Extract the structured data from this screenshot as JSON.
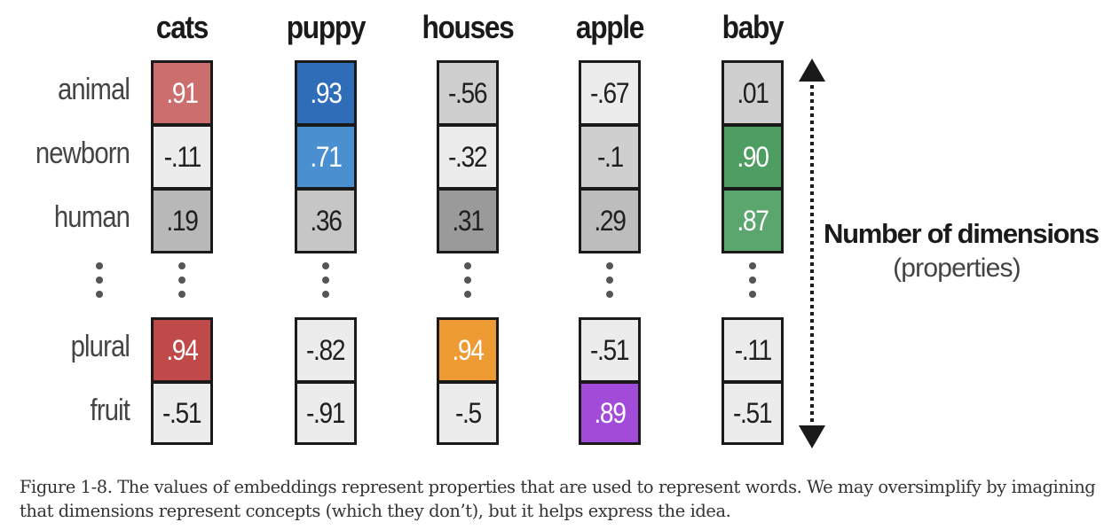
{
  "chart_data": {
    "type": "table",
    "columns": [
      "cats",
      "puppy",
      "houses",
      "apple",
      "baby"
    ],
    "rows": [
      "animal",
      "newborn",
      "human",
      "plural",
      "fruit"
    ],
    "values": [
      [
        ".91",
        ".93",
        "-.56",
        "-.67",
        ".01"
      ],
      [
        "-.11",
        ".71",
        "-.32",
        "-.1",
        ".90"
      ],
      [
        ".19",
        ".36",
        ".31",
        ".29",
        ".87"
      ],
      [
        ".94",
        "-.82",
        ".94",
        "-.51",
        "-.11"
      ],
      [
        "-.51",
        "-.91",
        "-.5",
        ".89",
        "-.51"
      ]
    ],
    "cell_colors": [
      [
        "#cd6e6e",
        "#2f6db8",
        "#cfcfcf",
        "#ececec",
        "#cfcfcf"
      ],
      [
        "#ececec",
        "#4a8fd0",
        "#ececec",
        "#cfcfcf",
        "#4e9e63"
      ],
      [
        "#b8b8b8",
        "#c6c6c6",
        "#9a9a9a",
        "#bdbdbd",
        "#5ba56f"
      ],
      [
        "#c04949",
        "#ececec",
        "#ef9b34",
        "#ececec",
        "#ececec"
      ],
      [
        "#ececec",
        "#ececec",
        "#ececec",
        "#a24bd8",
        "#ececec"
      ]
    ],
    "light_text_cells": [
      [
        0,
        0
      ],
      [
        0,
        1
      ],
      [
        1,
        1
      ],
      [
        1,
        4
      ],
      [
        2,
        4
      ],
      [
        3,
        0
      ],
      [
        3,
        2
      ],
      [
        4,
        3
      ]
    ],
    "axis_title": "Number of dimensions",
    "axis_subtitle": "(properties)",
    "ellipsis_between_rows": [
      2,
      3
    ]
  },
  "caption": "Figure 1-8. The values of embeddings represent properties that are used to represent words. We may oversimplify by imagining that dimensions represent concepts (which they don’t), but it helps express the idea.",
  "colors": {
    "border": "#1a1a1a",
    "dots": "#555555",
    "light_text": "#ffffff"
  }
}
